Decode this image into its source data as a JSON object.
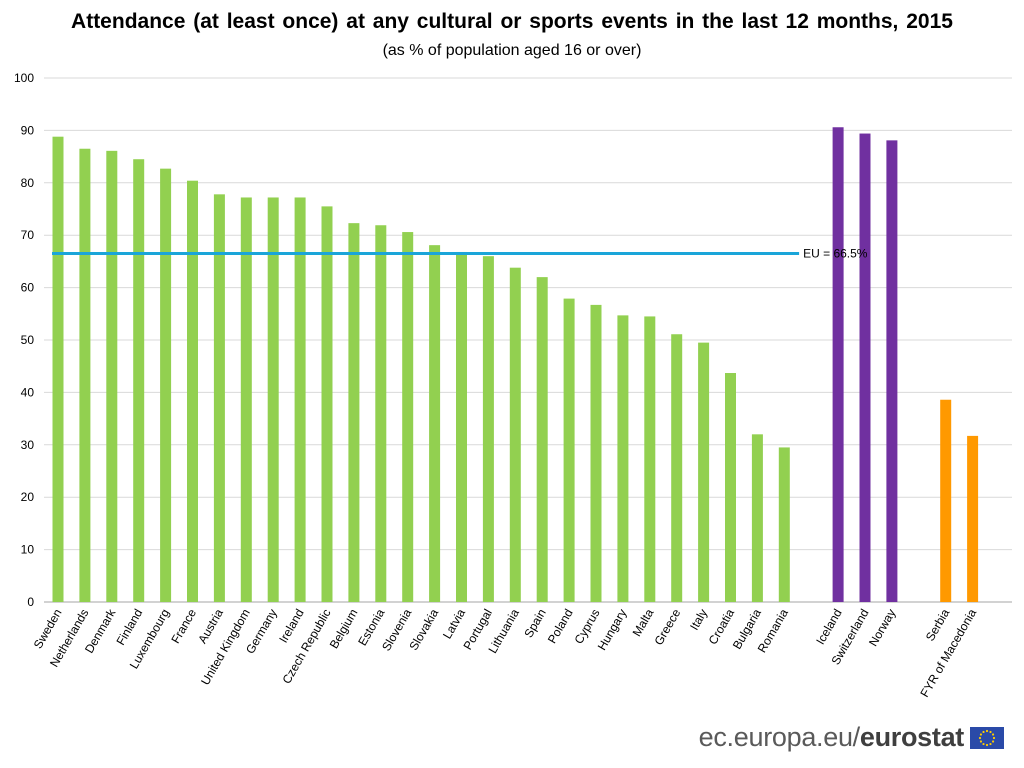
{
  "title": "Attendance (at least once) at any cultural or sports events in the last 12 months, 2015",
  "subtitle": "(as % of population aged 16 or over)",
  "footer": {
    "url": "ec.europa.eu/",
    "brand": "eurostat"
  },
  "colors": {
    "eu": "#92d050",
    "efta": "#7030a0",
    "candidate": "#ff9900",
    "reference": "#1aa5d9",
    "grid": "#d9d9d9"
  },
  "chart_data": {
    "type": "bar",
    "ylim": [
      0,
      100
    ],
    "yticks": [
      0,
      10,
      20,
      30,
      40,
      50,
      60,
      70,
      80,
      90,
      100
    ],
    "grid": true,
    "reference_line": {
      "value": 66.5,
      "label": "EU = 66.5%"
    },
    "groups": [
      {
        "color_key": "eu",
        "categories": [
          "Sweden",
          "Netherlands",
          "Denmark",
          "Finland",
          "Luxembourg",
          "France",
          "Austria",
          "United Kingdom",
          "Germany",
          "Ireland",
          "Czech Republic",
          "Belgium",
          "Estonia",
          "Slovenia",
          "Slovakia",
          "Latvia",
          "Portugal",
          "Lithuania",
          "Spain",
          "Poland",
          "Cyprus",
          "Hungary",
          "Malta",
          "Greece",
          "Italy",
          "Croatia",
          "Bulgaria",
          "Romania"
        ],
        "values": [
          88.8,
          86.5,
          86.1,
          84.5,
          82.7,
          80.4,
          77.8,
          77.2,
          77.2,
          77.2,
          75.5,
          72.3,
          71.9,
          70.6,
          68.1,
          66.8,
          66.0,
          63.8,
          62.0,
          57.9,
          56.7,
          54.7,
          54.5,
          51.1,
          49.5,
          43.7,
          32.0,
          29.5
        ]
      },
      {
        "color_key": "efta",
        "categories": [
          "Iceland",
          "Switzerland",
          "Norway"
        ],
        "values": [
          90.6,
          89.4,
          88.1
        ]
      },
      {
        "color_key": "candidate",
        "categories": [
          "Serbia",
          "FYR of Macedonia"
        ],
        "values": [
          38.6,
          31.7
        ]
      }
    ]
  }
}
